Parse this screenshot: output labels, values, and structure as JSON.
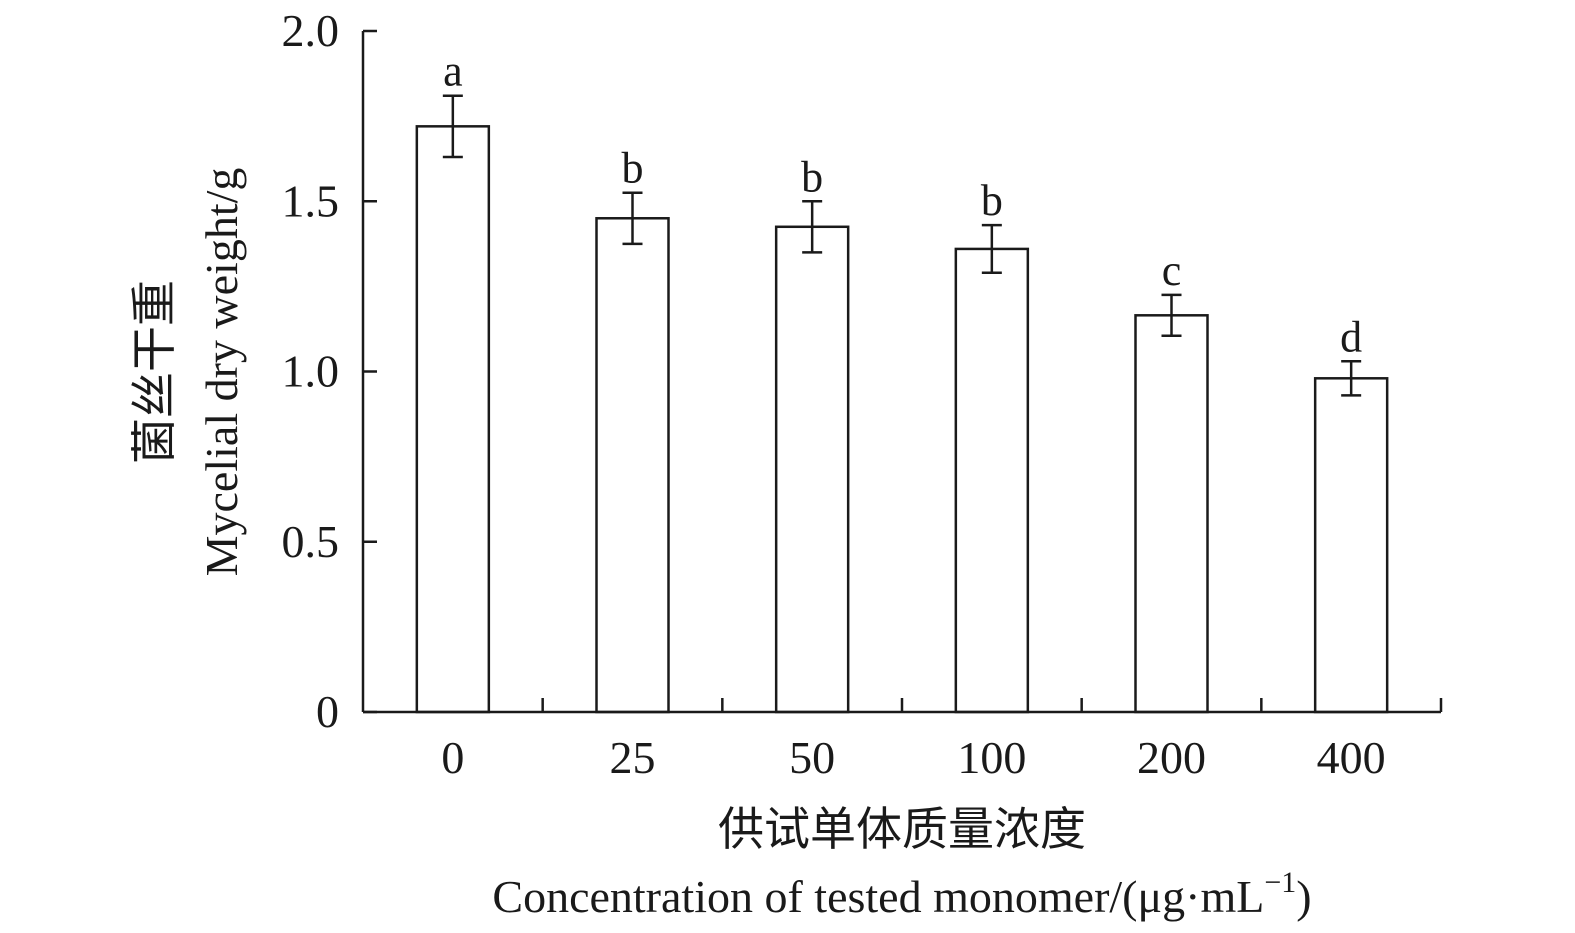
{
  "chart_data": {
    "type": "bar",
    "categories": [
      "0",
      "25",
      "50",
      "100",
      "200",
      "400"
    ],
    "values": [
      1.72,
      1.45,
      1.425,
      1.36,
      1.165,
      0.98
    ],
    "errors": [
      0.09,
      0.075,
      0.075,
      0.07,
      0.06,
      0.05
    ],
    "significance": [
      "a",
      "b",
      "b",
      "b",
      "c",
      "d"
    ],
    "ylim": [
      0,
      2.0
    ],
    "yticks": [
      0,
      0.5,
      1.0,
      1.5,
      2.0
    ],
    "ytick_labels": [
      "0",
      "0.5",
      "1.0",
      "1.5",
      "2.0"
    ],
    "xlabel_cn": "供试单体质量浓度",
    "xlabel_en": "Concentration of tested monomer/(μg·mL",
    "xlabel_en_sup": "−1",
    "xlabel_en_end": ")",
    "ylabel_cn": "菌丝干重",
    "ylabel_en": "Mycelial dry weight/g",
    "bar_fill": "#ffffff",
    "bar_stroke": "#1a1a1a",
    "grid": false,
    "legend": "none"
  }
}
